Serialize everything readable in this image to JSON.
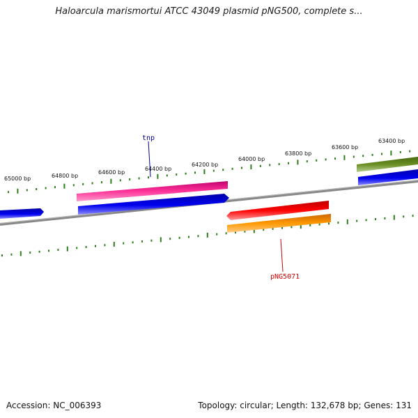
{
  "title": "Haloarcula marismortui ATCC 43049 plasmid pNG500, complete s...",
  "footer": {
    "accession": "Accession: NC_006393",
    "summary": "Topology: circular; Length: 132,678 bp; Genes: 131"
  },
  "tick_labels": [
    "65000 bp",
    "64800 bp",
    "64600 bp",
    "64400 bp",
    "64200 bp",
    "64000 bp",
    "63800 bp",
    "63600 bp",
    "63400 bp"
  ],
  "gene_labels": {
    "tnp": "tnp",
    "png5071": "pNG5071"
  },
  "colors": {
    "backbone": "#808080",
    "tick": "#2e7d1e",
    "pink": "#ff3399",
    "blue": "#0000ee",
    "red": "#ee0000",
    "orange": "#ff9900",
    "olive": "#6b8e23",
    "tnp_label": "#000099",
    "png5071_label": "#cc0000"
  }
}
